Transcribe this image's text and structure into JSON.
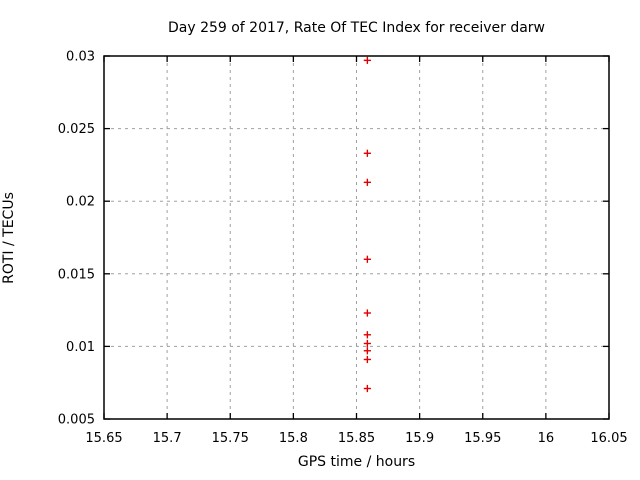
{
  "chart_data": {
    "type": "scatter",
    "title": "Day 259 of 2017, Rate Of TEC Index for receiver darw",
    "xlabel": "GPS time / hours",
    "ylabel": "ROTI / TECUs",
    "xlim": [
      15.65,
      16.05
    ],
    "ylim": [
      0.005,
      0.03
    ],
    "xticks": {
      "values": [
        15.65,
        15.7,
        15.75,
        15.8,
        15.85,
        15.9,
        15.95,
        16,
        16.05
      ],
      "labels": [
        "15.65",
        "15.7",
        "15.75",
        "15.8",
        "15.85",
        "15.9",
        "15.95",
        "16",
        "16.05"
      ]
    },
    "yticks": {
      "values": [
        0.005,
        0.01,
        0.015,
        0.02,
        0.025,
        0.03
      ],
      "labels": [
        "0.005",
        "0.01",
        "0.015",
        "0.02",
        "0.025",
        "0.03"
      ]
    },
    "grid": true,
    "legend": "none",
    "marker": "plus",
    "colors": {
      "marker": "#e00000",
      "grid": "#a0a0a0",
      "border": "#000000",
      "background": "#ffffff"
    },
    "series": [
      {
        "name": "ROTI",
        "points": [
          {
            "x": 15.8586,
            "y": 0.0297
          },
          {
            "x": 15.8586,
            "y": 0.0233
          },
          {
            "x": 15.8586,
            "y": 0.0213
          },
          {
            "x": 15.8586,
            "y": 0.016
          },
          {
            "x": 15.8586,
            "y": 0.0123
          },
          {
            "x": 15.8586,
            "y": 0.0108
          },
          {
            "x": 15.8586,
            "y": 0.0102
          },
          {
            "x": 15.8586,
            "y": 0.0097
          },
          {
            "x": 15.8586,
            "y": 0.0091
          },
          {
            "x": 15.8586,
            "y": 0.0071
          }
        ]
      }
    ]
  }
}
